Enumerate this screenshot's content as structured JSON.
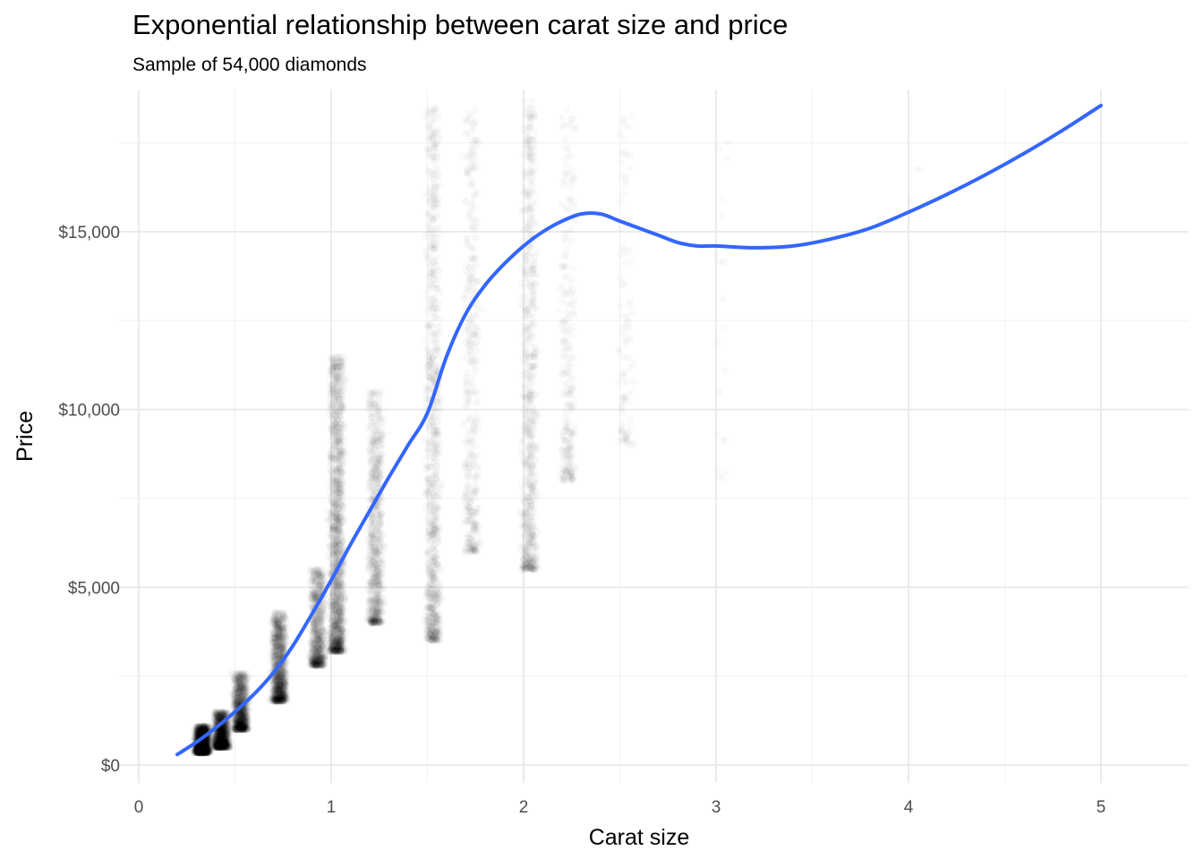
{
  "chart_data": {
    "type": "scatter",
    "title": "Exponential relationship between carat size and price",
    "subtitle": "Sample of 54,000 diamonds",
    "xlabel": "Carat size",
    "ylabel": "Price",
    "xlim": [
      0,
      5.2
    ],
    "ylim": [
      -500,
      19000
    ],
    "x_ticks": [
      0,
      1,
      2,
      3,
      4,
      5
    ],
    "x_tick_labels": [
      "0",
      "1",
      "2",
      "3",
      "4",
      "5"
    ],
    "y_ticks": [
      0,
      5000,
      10000,
      15000
    ],
    "y_tick_labels": [
      "$0",
      "$5,000",
      "$10,000",
      "$15,000"
    ],
    "grid": true,
    "legend": "none",
    "point_color": "#000000",
    "point_alpha": 0.02,
    "smooth_color": "#3366FF",
    "series": [
      {
        "type": "smooth",
        "x": [
          0.2,
          0.3,
          0.4,
          0.5,
          0.6,
          0.7,
          0.8,
          0.9,
          1.0,
          1.1,
          1.2,
          1.3,
          1.4,
          1.5,
          1.6,
          1.7,
          1.8,
          1.9,
          2.0,
          2.1,
          2.2,
          2.3,
          2.4,
          2.5,
          2.6,
          2.7,
          2.8,
          2.9,
          3.0,
          3.2,
          3.4,
          3.6,
          3.8,
          4.0,
          4.2,
          4.4,
          4.6,
          4.8,
          5.0
        ],
        "y": [
          300,
          650,
          1050,
          1500,
          2000,
          2600,
          3350,
          4250,
          5200,
          6200,
          7150,
          8100,
          9000,
          9900,
          11500,
          12700,
          13500,
          14100,
          14600,
          15000,
          15300,
          15500,
          15500,
          15300,
          15100,
          14900,
          14700,
          14600,
          14600,
          14550,
          14600,
          14800,
          15100,
          15550,
          16050,
          16600,
          17200,
          17850,
          18550
        ]
      },
      {
        "type": "point-clusters",
        "clusters": [
          {
            "x": 0.3,
            "y_min": 350,
            "y_max": 1100,
            "weight": 1800
          },
          {
            "x": 0.4,
            "y_min": 500,
            "y_max": 1500,
            "weight": 1400
          },
          {
            "x": 0.5,
            "y_min": 1000,
            "y_max": 2600,
            "weight": 1100
          },
          {
            "x": 0.7,
            "y_min": 1800,
            "y_max": 4300,
            "weight": 1200
          },
          {
            "x": 0.9,
            "y_min": 2800,
            "y_max": 5500,
            "weight": 800
          },
          {
            "x": 1.0,
            "y_min": 3200,
            "y_max": 11500,
            "weight": 1600
          },
          {
            "x": 1.2,
            "y_min": 4000,
            "y_max": 10500,
            "weight": 800
          },
          {
            "x": 1.5,
            "y_min": 3500,
            "y_max": 18500,
            "weight": 900
          },
          {
            "x": 1.7,
            "y_min": 6000,
            "y_max": 18500,
            "weight": 400
          },
          {
            "x": 2.0,
            "y_min": 5500,
            "y_max": 18800,
            "weight": 700
          },
          {
            "x": 2.2,
            "y_min": 8000,
            "y_max": 18500,
            "weight": 250
          },
          {
            "x": 2.5,
            "y_min": 9000,
            "y_max": 18500,
            "weight": 100
          },
          {
            "x": 3.0,
            "y_min": 8000,
            "y_max": 18500,
            "weight": 20
          },
          {
            "x": 4.0,
            "y_min": 15000,
            "y_max": 17000,
            "weight": 3
          }
        ]
      }
    ]
  }
}
